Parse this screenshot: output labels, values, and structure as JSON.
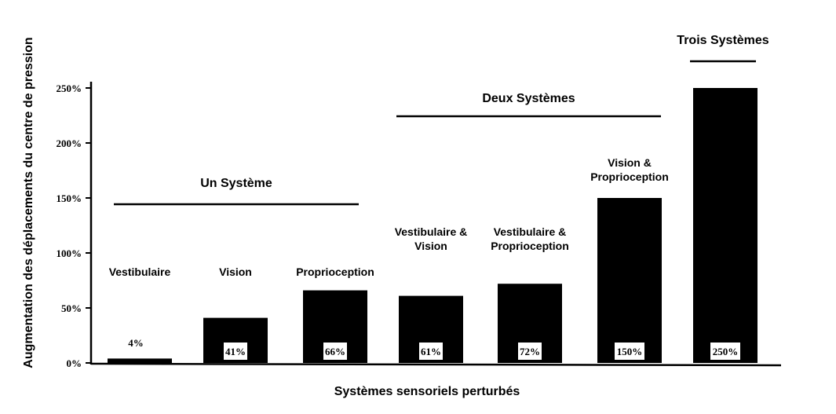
{
  "chart_data": {
    "type": "bar",
    "title": "",
    "xlabel": "Systèmes sensoriels perturbés",
    "ylabel": "Augmentation des déplacements du centre de pression",
    "ylim": [
      0,
      250
    ],
    "yticks": [
      {
        "value": 0,
        "label": "0%"
      },
      {
        "value": 50,
        "label": "50%"
      },
      {
        "value": 100,
        "label": "100%"
      },
      {
        "value": 150,
        "label": "150%"
      },
      {
        "value": 200,
        "label": "200%"
      },
      {
        "value": 250,
        "label": "250%"
      }
    ],
    "categories": [
      [
        "Vestibulaire"
      ],
      [
        "Vision"
      ],
      [
        "Proprioception"
      ],
      [
        "Vestibulaire &",
        "Vision"
      ],
      [
        "Vestibulaire &",
        "Proprioception"
      ],
      [
        "Vision &",
        "Proprioception"
      ],
      []
    ],
    "values": [
      4,
      41,
      66,
      61,
      72,
      150,
      250
    ],
    "data_labels": [
      "4%",
      "41%",
      "66%",
      "61%",
      "72%",
      "150%",
      "250%"
    ],
    "groups": [
      {
        "label": "Un Système",
        "from": 0,
        "to": 2
      },
      {
        "label": "Deux Systèmes",
        "from": 3,
        "to": 5
      },
      {
        "label": "Trois Systèmes",
        "from": 6,
        "to": 6
      }
    ],
    "grid": false,
    "bar_color": "#000000"
  }
}
